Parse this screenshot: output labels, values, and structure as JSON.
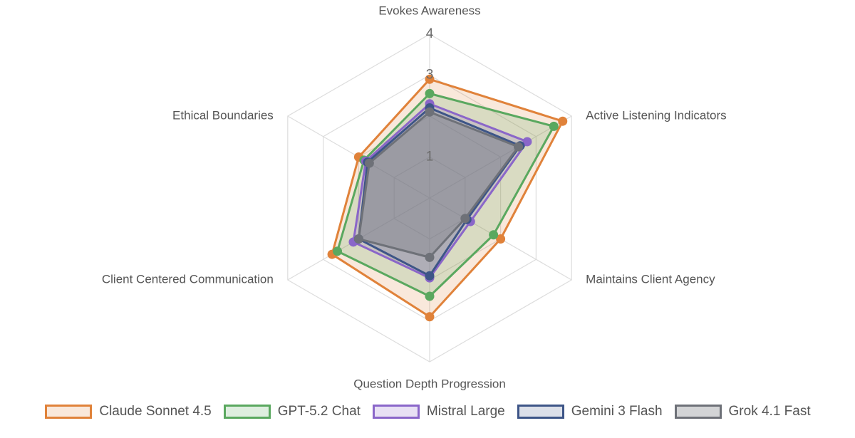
{
  "chart_data": {
    "type": "radar",
    "axes": [
      "Evokes Awareness",
      "Active Listening Indicators",
      "Maintains Client Agency",
      "Question Depth Progression",
      "Client Centered Communication",
      "Ethical Boundaries"
    ],
    "r_range": [
      0,
      4
    ],
    "ticks": [
      "1",
      "3",
      "4"
    ],
    "tick_values": [
      1,
      3,
      4
    ],
    "grid_levels": [
      1,
      2,
      3,
      4
    ],
    "legend_position": "bottom",
    "series": [
      {
        "name": "Claude Sonnet 4.5",
        "color": "#e0823a",
        "fill": "rgba(224,130,58,0.18)",
        "values": [
          2.9,
          3.75,
          2.0,
          2.9,
          2.75,
          2.0
        ]
      },
      {
        "name": "GPT-5.2 Chat",
        "color": "#5aa85f",
        "fill": "rgba(90,168,95,0.20)",
        "values": [
          2.55,
          3.5,
          1.8,
          2.4,
          2.6,
          1.85
        ]
      },
      {
        "name": "Mistral Large",
        "color": "#8a66c9",
        "fill": "rgba(138,102,201,0.20)",
        "values": [
          2.3,
          2.75,
          1.15,
          1.95,
          2.15,
          1.8
        ]
      },
      {
        "name": "Gemini 3 Flash",
        "color": "#3d5587",
        "fill": "rgba(61,85,135,0.18)",
        "values": [
          2.2,
          2.55,
          1.05,
          1.9,
          2.0,
          1.75
        ]
      },
      {
        "name": "Grok 4.1 Fast",
        "color": "#6e7178",
        "fill": "rgba(110,113,120,0.30)",
        "values": [
          2.1,
          2.5,
          1.0,
          1.45,
          2.0,
          1.7
        ]
      }
    ]
  }
}
